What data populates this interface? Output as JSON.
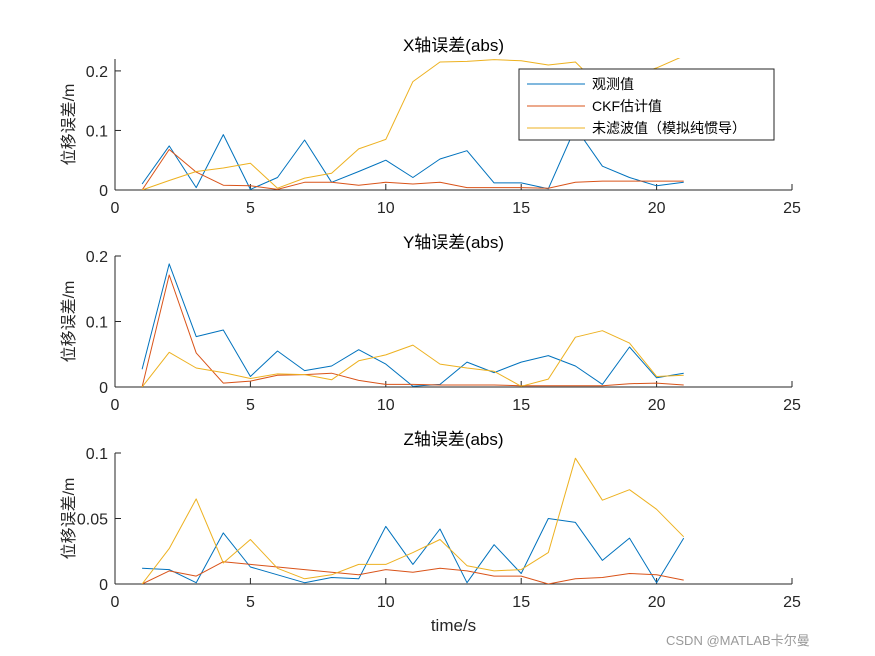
{
  "watermark": "CSDN @MATLAB卡尔曼",
  "colors": {
    "measured": "#0072BD",
    "ckf": "#D95319",
    "ins": "#EDB120"
  },
  "chart_data": [
    {
      "type": "line",
      "title": "X轴误差(abs)",
      "ylabel": "位移误差/m",
      "xlabel": "",
      "xlim": [
        0,
        25
      ],
      "ylim": [
        0,
        0.22
      ],
      "xticks": [
        0,
        5,
        10,
        15,
        20,
        25
      ],
      "yticks": [
        0,
        0.1,
        0.2
      ],
      "ytick_labels": [
        "0",
        "0.1",
        "0.2"
      ],
      "legend_position": "top-right",
      "x": [
        1,
        2,
        3,
        4,
        5,
        6,
        7,
        8,
        9,
        10,
        11,
        12,
        13,
        14,
        15,
        16,
        17,
        18,
        19,
        20,
        21
      ],
      "series": [
        {
          "name": "观测值",
          "values": [
            0.01,
            0.074,
            0.004,
            0.093,
            0.001,
            0.021,
            0.084,
            0.013,
            0.031,
            0.05,
            0.021,
            0.052,
            0.066,
            0.012,
            0.012,
            0.002,
            0.105,
            0.04,
            0.021,
            0.007,
            0.013
          ]
        },
        {
          "name": "CKF估计值",
          "values": [
            0.0,
            0.068,
            0.03,
            0.008,
            0.007,
            0.001,
            0.013,
            0.013,
            0.008,
            0.013,
            0.01,
            0.013,
            0.004,
            0.004,
            0.004,
            0.003,
            0.013,
            0.015,
            0.015,
            0.015,
            0.015
          ]
        },
        {
          "name": "未滤波值（模拟纯惯导）",
          "values": [
            0.0,
            0.016,
            0.031,
            0.037,
            0.045,
            0.003,
            0.02,
            0.028,
            0.069,
            0.085,
            0.182,
            0.215,
            0.216,
            0.219,
            0.217,
            0.21,
            0.215,
            0.17,
            0.19,
            0.205,
            0.225
          ]
        }
      ]
    },
    {
      "type": "line",
      "title": "Y轴误差(abs)",
      "ylabel": "位移误差/m",
      "xlabel": "",
      "xlim": [
        0,
        25
      ],
      "ylim": [
        0,
        0.2
      ],
      "xticks": [
        0,
        5,
        10,
        15,
        20,
        25
      ],
      "yticks": [
        0,
        0.1,
        0.2
      ],
      "ytick_labels": [
        "0",
        "0.1",
        "0.2"
      ],
      "x": [
        1,
        2,
        3,
        4,
        5,
        6,
        7,
        8,
        9,
        10,
        11,
        12,
        13,
        14,
        15,
        16,
        17,
        18,
        19,
        20,
        21
      ],
      "series": [
        {
          "name": "观测值",
          "values": [
            0.027,
            0.188,
            0.077,
            0.087,
            0.016,
            0.055,
            0.025,
            0.032,
            0.057,
            0.035,
            0.001,
            0.004,
            0.038,
            0.022,
            0.038,
            0.048,
            0.032,
            0.004,
            0.061,
            0.014,
            0.021
          ]
        },
        {
          "name": "CKF估计值",
          "values": [
            0.0,
            0.171,
            0.052,
            0.006,
            0.009,
            0.018,
            0.019,
            0.021,
            0.01,
            0.004,
            0.004,
            0.003,
            0.003,
            0.003,
            0.002,
            0.002,
            0.002,
            0.002,
            0.005,
            0.006,
            0.003
          ]
        },
        {
          "name": "未滤波值（模拟纯惯导）",
          "values": [
            0.0,
            0.053,
            0.029,
            0.022,
            0.013,
            0.02,
            0.019,
            0.011,
            0.04,
            0.049,
            0.064,
            0.035,
            0.029,
            0.024,
            0.001,
            0.012,
            0.076,
            0.086,
            0.067,
            0.016,
            0.018
          ]
        }
      ]
    },
    {
      "type": "line",
      "title": "Z轴误差(abs)",
      "ylabel": "位移误差/m",
      "xlabel": "time/s",
      "xlim": [
        0,
        25
      ],
      "ylim": [
        0,
        0.1
      ],
      "xticks": [
        0,
        5,
        10,
        15,
        20,
        25
      ],
      "yticks": [
        0,
        0.05,
        0.1
      ],
      "ytick_labels": [
        "0",
        "0.05",
        "0.1"
      ],
      "x": [
        1,
        2,
        3,
        4,
        5,
        6,
        7,
        8,
        9,
        10,
        11,
        12,
        13,
        14,
        15,
        16,
        17,
        18,
        19,
        20,
        21
      ],
      "series": [
        {
          "name": "观测值",
          "values": [
            0.012,
            0.011,
            0.001,
            0.039,
            0.013,
            0.007,
            0.001,
            0.005,
            0.004,
            0.044,
            0.015,
            0.042,
            0.001,
            0.03,
            0.008,
            0.05,
            0.047,
            0.018,
            0.035,
            0.001,
            0.035
          ]
        },
        {
          "name": "CKF估计值",
          "values": [
            0.0,
            0.01,
            0.006,
            0.017,
            0.015,
            0.013,
            0.011,
            0.009,
            0.007,
            0.011,
            0.009,
            0.012,
            0.01,
            0.006,
            0.006,
            0.0,
            0.004,
            0.005,
            0.008,
            0.007,
            0.003
          ]
        },
        {
          "name": "未滤波值（模拟纯惯导）",
          "values": [
            0.0,
            0.027,
            0.065,
            0.016,
            0.034,
            0.012,
            0.004,
            0.007,
            0.015,
            0.015,
            0.024,
            0.034,
            0.014,
            0.01,
            0.011,
            0.024,
            0.096,
            0.064,
            0.072,
            0.057,
            0.036
          ]
        }
      ]
    }
  ]
}
